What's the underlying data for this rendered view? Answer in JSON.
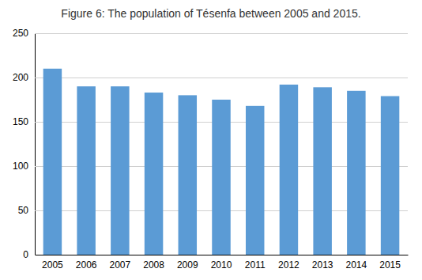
{
  "chart_data": {
    "type": "bar",
    "title": "Figure 6: The population of Tésenfa between 2005 and 2015.",
    "categories": [
      "2005",
      "2006",
      "2007",
      "2008",
      "2009",
      "2010",
      "2011",
      "2012",
      "2013",
      "2014",
      "2015"
    ],
    "values": [
      210,
      190,
      190,
      183,
      180,
      175,
      168,
      192,
      189,
      185,
      179
    ],
    "color": "#5B9BD5",
    "ylim": [
      0,
      250
    ],
    "yticks": [
      0,
      50,
      100,
      150,
      200,
      250
    ],
    "grid": true
  }
}
